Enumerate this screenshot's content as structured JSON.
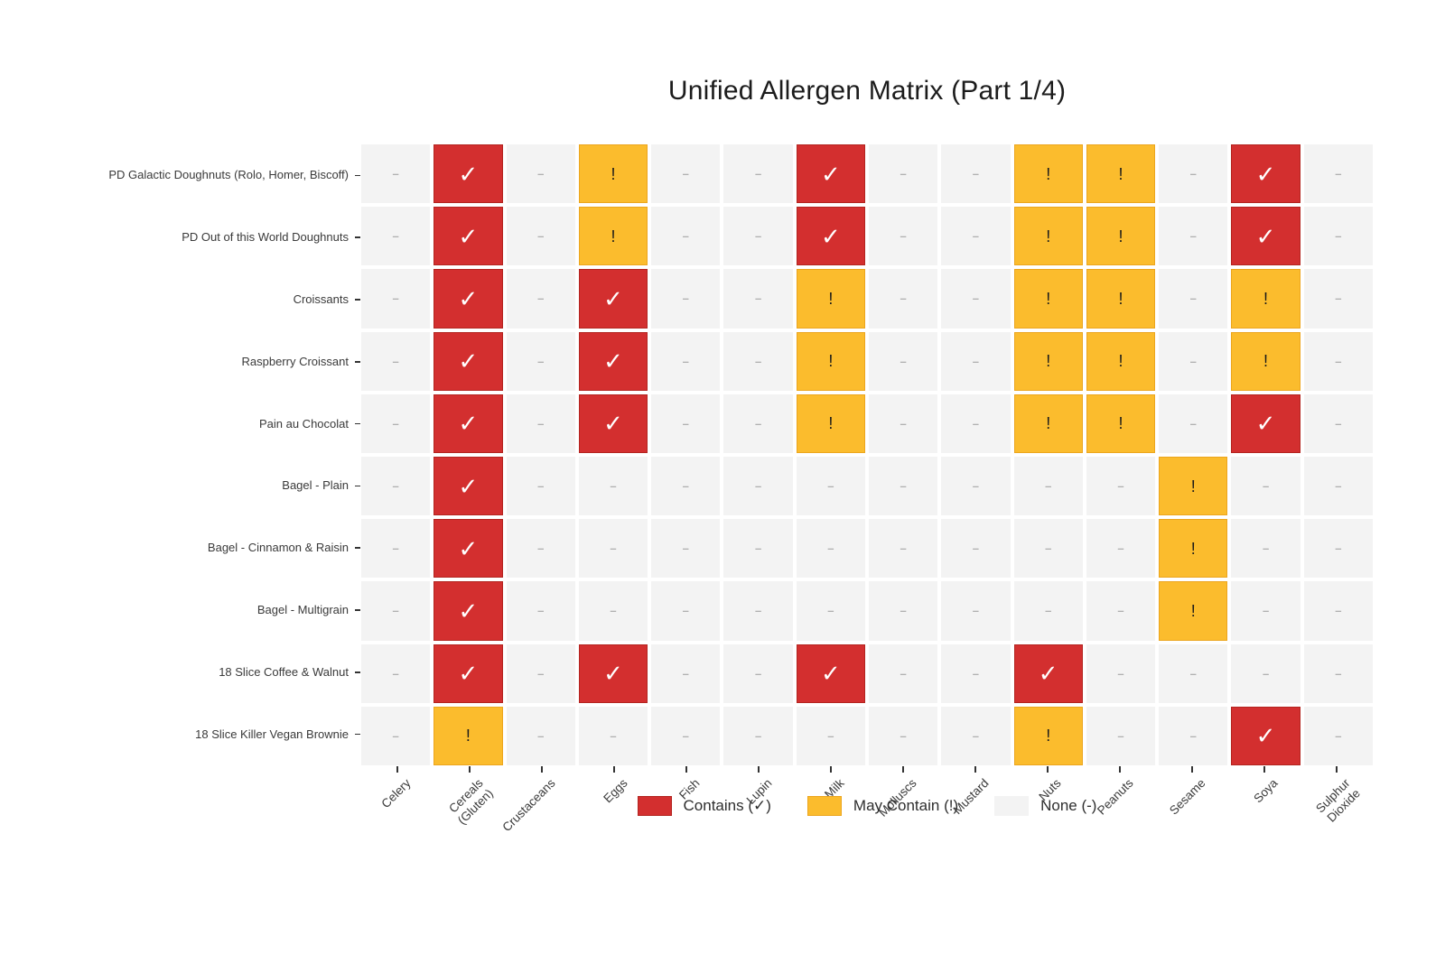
{
  "title": "Unified Allergen Matrix (Part 1/4)",
  "colors": {
    "contains_fill": "#d32f2f",
    "contains_border": "#b3241f",
    "may_fill": "#fbbc2d",
    "may_border": "#eca51d",
    "none_fill": "#f3f3f3",
    "dash": "#b0b0b0",
    "check": "#ffffff",
    "excl": "#1a1a1a",
    "axis_text": "#3a3a3a",
    "title_text": "#1c1c1c"
  },
  "legend": {
    "items": [
      {
        "level": "2",
        "label": "Contains (✓)"
      },
      {
        "level": "1",
        "label": "May Contain (!)"
      },
      {
        "level": "0",
        "label": "None (-)"
      }
    ]
  },
  "chart_data": {
    "type": "heatmap",
    "title": "Unified Allergen Matrix (Part 1/4)",
    "legend_position": "bottom-center",
    "grid": "white-gaps",
    "columns": [
      "Celery",
      "Cereals\n(Gluten)",
      "Crustaceans",
      "Eggs",
      "Fish",
      "Lupin",
      "Milk",
      "Molluscs",
      "Mustard",
      "Nuts",
      "Peanuts",
      "Sesame",
      "Soya",
      "Sulphur\nDioxide"
    ],
    "rows": [
      "PD Galactic Doughnuts (Rolo, Homer, Biscoff)",
      "PD Out of this World Doughnuts",
      "Croissants",
      "Raspberry Croissant",
      "Pain au Chocolat",
      "Bagel - Plain",
      "Bagel - Cinnamon & Raisin",
      "Bagel - Multigrain",
      "18 Slice Coffee & Walnut",
      "18 Slice Killer Vegan Brownie"
    ],
    "level_names": {
      "2": "Contains",
      "1": "May Contain",
      "0": "None"
    },
    "cell_symbols": {
      "2": "✓",
      "1": "!",
      "0": "–"
    },
    "values": [
      [
        0,
        2,
        0,
        1,
        0,
        0,
        2,
        0,
        0,
        1,
        1,
        0,
        2,
        0
      ],
      [
        0,
        2,
        0,
        1,
        0,
        0,
        2,
        0,
        0,
        1,
        1,
        0,
        2,
        0
      ],
      [
        0,
        2,
        0,
        2,
        0,
        0,
        1,
        0,
        0,
        1,
        1,
        0,
        1,
        0
      ],
      [
        0,
        2,
        0,
        2,
        0,
        0,
        1,
        0,
        0,
        1,
        1,
        0,
        1,
        0
      ],
      [
        0,
        2,
        0,
        2,
        0,
        0,
        1,
        0,
        0,
        1,
        1,
        0,
        2,
        0
      ],
      [
        0,
        2,
        0,
        0,
        0,
        0,
        0,
        0,
        0,
        0,
        0,
        1,
        0,
        0
      ],
      [
        0,
        2,
        0,
        0,
        0,
        0,
        0,
        0,
        0,
        0,
        0,
        1,
        0,
        0
      ],
      [
        0,
        2,
        0,
        0,
        0,
        0,
        0,
        0,
        0,
        0,
        0,
        1,
        0,
        0
      ],
      [
        0,
        2,
        0,
        2,
        0,
        0,
        2,
        0,
        0,
        2,
        0,
        0,
        0,
        0
      ],
      [
        0,
        1,
        0,
        0,
        0,
        0,
        0,
        0,
        0,
        1,
        0,
        0,
        2,
        0
      ]
    ]
  }
}
